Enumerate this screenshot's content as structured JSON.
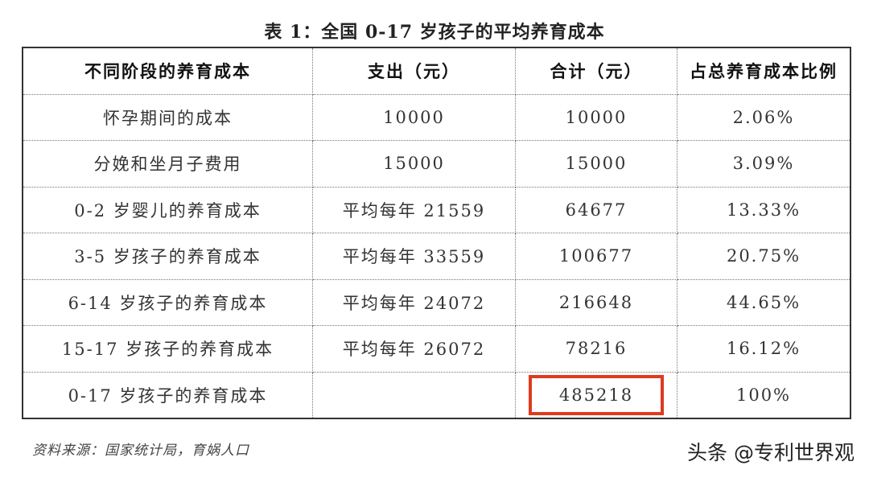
{
  "title": "表 1：全国 0-17 岁孩子的平均养育成本",
  "table": {
    "headers": [
      "不同阶段的养育成本",
      "支出（元）",
      "合计（元）",
      "占总养育成本比例"
    ],
    "rows": [
      [
        "怀孕期间的成本",
        "10000",
        "10000",
        "2.06%"
      ],
      [
        "分娩和坐月子费用",
        "15000",
        "15000",
        "3.09%"
      ],
      [
        "0-2 岁婴儿的养育成本",
        "平均每年 21559",
        "64677",
        "13.33%"
      ],
      [
        "3-5 岁孩子的养育成本",
        "平均每年 33559",
        "100677",
        "20.75%"
      ],
      [
        "6-14 岁孩子的养育成本",
        "平均每年 24072",
        "216648",
        "44.65%"
      ],
      [
        "15-17 岁孩子的养育成本",
        "平均每年 26072",
        "78216",
        "16.12%"
      ],
      [
        "0-17 岁孩子的养育成本",
        "",
        "485218",
        "100%"
      ]
    ],
    "highlight_color": "#e03a1e"
  },
  "source": "资料来源：国家统计局，育娲人口",
  "watermark": "头条 @专利世界观"
}
